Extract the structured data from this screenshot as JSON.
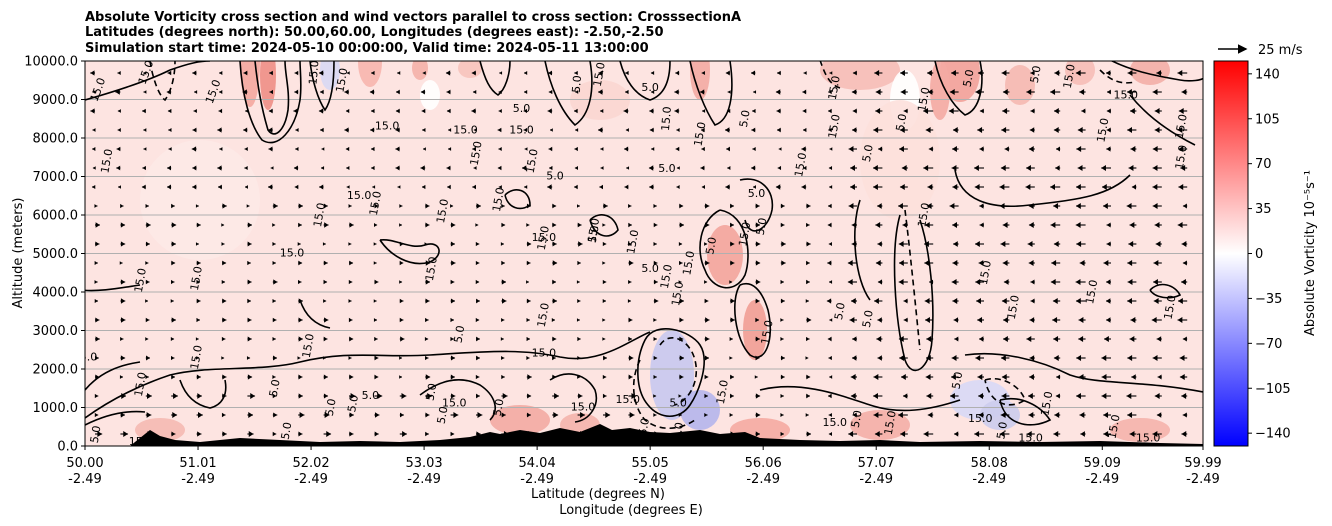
{
  "chart_data": {
    "type": "heatmap",
    "title_lines": [
      "Absolute Vorticity cross section and wind vectors parallel to cross section: CrosssectionA",
      "Latitudes (degrees north): 50.00,60.00, Longitudes (degrees east): -2.50,-2.50",
      "Simulation start time: 2024-05-10 00:00:00, Valid time: 2024-05-11 13:00:00"
    ],
    "ylabel": "Altitude (meters)",
    "xlabel_lat": "Latitude (degrees N)",
    "xlabel_lon": "Longitude (degrees E)",
    "ylim": [
      0,
      10000
    ],
    "yticks": [
      "0.0",
      "1000.0",
      "2000.0",
      "3000.0",
      "4000.0",
      "5000.0",
      "6000.0",
      "7000.0",
      "8000.0",
      "9000.0",
      "10000.0"
    ],
    "xlim": [
      50.0,
      59.99
    ],
    "xticks": [
      {
        "lat": "50.00",
        "lon": "-2.49"
      },
      {
        "lat": "51.01",
        "lon": "-2.49"
      },
      {
        "lat": "52.02",
        "lon": "-2.49"
      },
      {
        "lat": "53.03",
        "lon": "-2.49"
      },
      {
        "lat": "54.04",
        "lon": "-2.49"
      },
      {
        "lat": "55.05",
        "lon": "-2.49"
      },
      {
        "lat": "56.06",
        "lon": "-2.49"
      },
      {
        "lat": "57.07",
        "lon": "-2.49"
      },
      {
        "lat": "58.08",
        "lon": "-2.49"
      },
      {
        "lat": "59.09",
        "lon": "-2.49"
      },
      {
        "lat": "59.99",
        "lon": "-2.49"
      }
    ],
    "grid": "horizontal",
    "colorbar": {
      "label": "Absolute Vorticity 10⁻⁵s⁻¹",
      "vmin": -150,
      "vmax": 150,
      "ticks": [
        "140",
        "105",
        "70",
        "35",
        "0",
        "−35",
        "−70",
        "−105",
        "−140"
      ],
      "tick_values": [
        140,
        105,
        70,
        35,
        0,
        -35,
        -70,
        -105,
        -140
      ],
      "colors": {
        "low": "#0000ff",
        "mid": "#ffffff",
        "high": "#ff0000"
      }
    },
    "quiver_key": "25 m/s",
    "contour_labels": [
      {
        "text": "15.0",
        "lat": 50.12,
        "alt": 9250,
        "rot": -70
      },
      {
        "text": "15.0",
        "lat": 50.55,
        "alt": 9700,
        "rot": -70
      },
      {
        "text": "15.0",
        "lat": 51.15,
        "alt": 9200,
        "rot": -70
      },
      {
        "text": "15.0",
        "lat": 50.2,
        "alt": 7400,
        "rot": -80
      },
      {
        "text": "15.0",
        "lat": 52.05,
        "alt": 9700,
        "rot": -85
      },
      {
        "text": "15.0",
        "lat": 52.3,
        "alt": 9500,
        "rot": -80
      },
      {
        "text": "15.0",
        "lat": 52.7,
        "alt": 8300,
        "rot": 0
      },
      {
        "text": "15.0",
        "lat": 53.4,
        "alt": 8200,
        "rot": 0
      },
      {
        "text": "15.0",
        "lat": 53.9,
        "alt": 8200,
        "rot": 0
      },
      {
        "text": "5.0",
        "lat": 53.9,
        "alt": 8750,
        "rot": 0
      },
      {
        "text": "5.0",
        "lat": 54.4,
        "alt": 9400,
        "rot": -85
      },
      {
        "text": "5.0",
        "lat": 55.05,
        "alt": 9300,
        "rot": 0
      },
      {
        "text": "15.0",
        "lat": 55.2,
        "alt": 8500,
        "rot": -85
      },
      {
        "text": "15.0",
        "lat": 55.5,
        "alt": 8100,
        "rot": -80
      },
      {
        "text": "5.0",
        "lat": 55.9,
        "alt": 8500,
        "rot": -80
      },
      {
        "text": "15.0",
        "lat": 54.6,
        "alt": 9650,
        "rot": -80
      },
      {
        "text": "5.0",
        "lat": 55.2,
        "alt": 7200,
        "rot": 0
      },
      {
        "text": "5.0",
        "lat": 54.2,
        "alt": 7000,
        "rot": 0
      },
      {
        "text": "15.0",
        "lat": 53.5,
        "alt": 7600,
        "rot": -80
      },
      {
        "text": "15.0",
        "lat": 54.0,
        "alt": 7400,
        "rot": -80
      },
      {
        "text": "15.0",
        "lat": 52.45,
        "alt": 6500,
        "rot": 0
      },
      {
        "text": "15.0",
        "lat": 52.1,
        "alt": 6000,
        "rot": -80
      },
      {
        "text": "15.0",
        "lat": 52.6,
        "alt": 6300,
        "rot": -80
      },
      {
        "text": "15.0",
        "lat": 53.2,
        "alt": 6100,
        "rot": -80
      },
      {
        "text": "15.0",
        "lat": 53.7,
        "alt": 6400,
        "rot": -80
      },
      {
        "text": "5.0",
        "lat": 56.0,
        "alt": 6550,
        "rot": 0
      },
      {
        "text": "15.0",
        "lat": 56.4,
        "alt": 7300,
        "rot": -80
      },
      {
        "text": "15.0",
        "lat": 54.1,
        "alt": 5400,
        "rot": -80
      },
      {
        "text": "15.0",
        "lat": 54.1,
        "alt": 5400,
        "rot": 0
      },
      {
        "text": "15.0",
        "lat": 54.9,
        "alt": 5300,
        "rot": -80
      },
      {
        "text": "15.0",
        "lat": 54.55,
        "alt": 5600,
        "rot": -80
      },
      {
        "text": "5.0",
        "lat": 54.55,
        "alt": 5500,
        "rot": -80
      },
      {
        "text": "5.0",
        "lat": 55.05,
        "alt": 4600,
        "rot": 0
      },
      {
        "text": "15.0",
        "lat": 55.2,
        "alt": 4400,
        "rot": -80
      },
      {
        "text": "15.0",
        "lat": 55.3,
        "alt": 3950,
        "rot": -80
      },
      {
        "text": "15.0",
        "lat": 55.4,
        "alt": 4750,
        "rot": -80
      },
      {
        "text": "15.0",
        "lat": 55.9,
        "alt": 5500,
        "rot": -80
      },
      {
        "text": "5.0",
        "lat": 55.6,
        "alt": 5200,
        "rot": -80
      },
      {
        "text": "5.0",
        "lat": 56.05,
        "alt": 5700,
        "rot": -80
      },
      {
        "text": "15.0",
        "lat": 57.5,
        "alt": 6000,
        "rot": -80
      },
      {
        "text": "15.0",
        "lat": 58.05,
        "alt": 4500,
        "rot": -80
      },
      {
        "text": "15.0",
        "lat": 58.3,
        "alt": 3600,
        "rot": -80
      },
      {
        "text": "15.0",
        "lat": 59.0,
        "alt": 4000,
        "rot": -80
      },
      {
        "text": "15.0",
        "lat": 59.7,
        "alt": 3600,
        "rot": -80
      },
      {
        "text": "5.0",
        "lat": 56.75,
        "alt": 3500,
        "rot": -80
      },
      {
        "text": "5.0",
        "lat": 57.0,
        "alt": 3300,
        "rot": -80
      },
      {
        "text": "15.0",
        "lat": 56.1,
        "alt": 2950,
        "rot": -80
      },
      {
        "text": "5.0",
        "lat": 53.35,
        "alt": 2900,
        "rot": -80
      },
      {
        "text": "15.0",
        "lat": 54.1,
        "alt": 3400,
        "rot": -80
      },
      {
        "text": "15.0",
        "lat": 52.0,
        "alt": 2600,
        "rot": -80
      },
      {
        "text": "15.0",
        "lat": 50.5,
        "alt": 4300,
        "rot": -80
      },
      {
        "text": "15.0",
        "lat": 51.0,
        "alt": 4350,
        "rot": -80
      },
      {
        "text": "15.0",
        "lat": 53.1,
        "alt": 4600,
        "rot": -80
      },
      {
        "text": "15.0",
        "lat": 51.85,
        "alt": 5000,
        "rot": 0
      },
      {
        "text": "15.0",
        "lat": 50.0,
        "alt": 2300,
        "rot": 0
      },
      {
        "text": "15.0",
        "lat": 51.0,
        "alt": 2300,
        "rot": -80
      },
      {
        "text": "15.0",
        "lat": 50.5,
        "alt": 1600,
        "rot": -80
      },
      {
        "text": "5.0",
        "lat": 51.7,
        "alt": 1500,
        "rot": -80
      },
      {
        "text": "5.0",
        "lat": 52.4,
        "alt": 1100,
        "rot": -80
      },
      {
        "text": "15.0",
        "lat": 53.3,
        "alt": 1100,
        "rot": 0
      },
      {
        "text": "15.0",
        "lat": 54.1,
        "alt": 2400,
        "rot": 0
      },
      {
        "text": "5.0",
        "lat": 52.55,
        "alt": 1300,
        "rot": 0
      },
      {
        "text": "5.0",
        "lat": 53.1,
        "alt": 1400,
        "rot": -80
      },
      {
        "text": "5.0",
        "lat": 53.7,
        "alt": 1000,
        "rot": -80
      },
      {
        "text": "15.0",
        "lat": 54.45,
        "alt": 1000,
        "rot": 0
      },
      {
        "text": "15.0",
        "lat": 54.85,
        "alt": 1200,
        "rot": 0
      },
      {
        "text": "5.0",
        "lat": 55.3,
        "alt": 1100,
        "rot": 0
      },
      {
        "text": "15.0",
        "lat": 55.7,
        "alt": 1400,
        "rot": -80
      },
      {
        "text": "5.0",
        "lat": 56.9,
        "alt": 700,
        "rot": -80
      },
      {
        "text": "15.0",
        "lat": 56.7,
        "alt": 600,
        "rot": 0
      },
      {
        "text": "5.0",
        "lat": 57.8,
        "alt": 1700,
        "rot": -80
      },
      {
        "text": "15.0",
        "lat": 58.0,
        "alt": 700,
        "rot": 0
      },
      {
        "text": "15.0",
        "lat": 58.6,
        "alt": 1100,
        "rot": -80
      },
      {
        "text": "15.0",
        "lat": 58.45,
        "alt": 200,
        "rot": 0
      },
      {
        "text": "15.0",
        "lat": 59.2,
        "alt": 500,
        "rot": -80
      },
      {
        "text": "15.0",
        "lat": 59.5,
        "alt": 200,
        "rot": 0
      },
      {
        "text": "15.0",
        "lat": 50.5,
        "alt": 100,
        "rot": 0
      },
      {
        "text": "5.0",
        "lat": 50.1,
        "alt": 300,
        "rot": -80
      },
      {
        "text": "15.0",
        "lat": 51.8,
        "alt": 300,
        "rot": -80
      },
      {
        "text": "5.0",
        "lat": 52.2,
        "alt": 1000,
        "rot": -80
      },
      {
        "text": "5.0",
        "lat": 53.2,
        "alt": 800,
        "rot": -80
      },
      {
        "text": "5.0",
        "lat": 55.0,
        "alt": 500,
        "rot": -80
      },
      {
        "text": "15.0",
        "lat": 55.3,
        "alt": 300,
        "rot": -80
      },
      {
        "text": "15.0",
        "lat": 57.2,
        "alt": 600,
        "rot": -80
      },
      {
        "text": "5.0",
        "lat": 58.2,
        "alt": 400,
        "rot": -80
      },
      {
        "text": "15.0",
        "lat": 59.8,
        "alt": 8300,
        "rot": -80
      },
      {
        "text": "15.0",
        "lat": 59.8,
        "alt": 7500,
        "rot": -80
      },
      {
        "text": "15.0",
        "lat": 59.3,
        "alt": 9100,
        "rot": 0
      },
      {
        "text": "15.0",
        "lat": 59.1,
        "alt": 8200,
        "rot": -80
      },
      {
        "text": "5.0",
        "lat": 58.5,
        "alt": 9650,
        "rot": -80
      },
      {
        "text": "15.0",
        "lat": 58.8,
        "alt": 9600,
        "rot": -80
      },
      {
        "text": "15.0",
        "lat": 57.5,
        "alt": 9000,
        "rot": -80
      },
      {
        "text": "5.0",
        "lat": 57.9,
        "alt": 9550,
        "rot": -80
      },
      {
        "text": "15.0",
        "lat": 56.7,
        "alt": 9300,
        "rot": -80
      },
      {
        "text": "5.0",
        "lat": 57.0,
        "alt": 7600,
        "rot": -80
      },
      {
        "text": "15.0",
        "lat": 56.7,
        "alt": 8300,
        "rot": -80
      },
      {
        "text": "5.0",
        "lat": 57.3,
        "alt": 8400,
        "rot": -80
      }
    ]
  }
}
